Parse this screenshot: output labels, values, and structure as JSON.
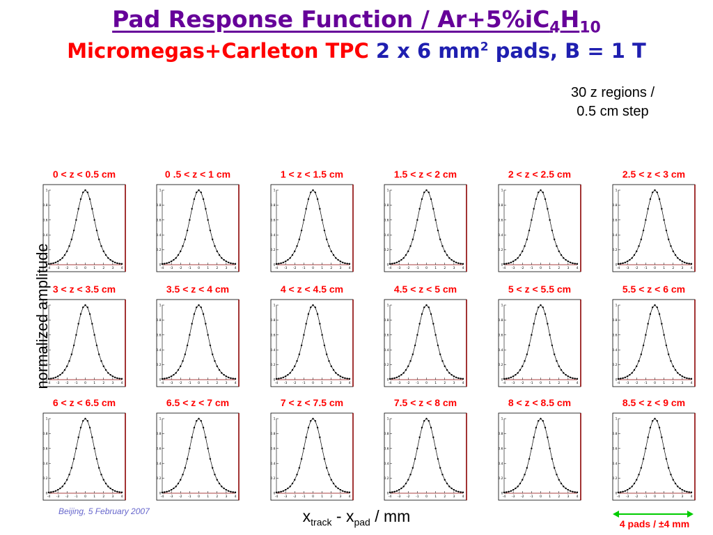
{
  "title": {
    "line1_main": "Pad Response Function / Ar+5%iC",
    "line1_sub1": "4",
    "line1_mid": "H",
    "line1_sub2": "10",
    "line2_red": "Micromegas+Carleton TPC",
    "line2_blue_a": "2 x 6 mm",
    "line2_sup": "2",
    "line2_blue_b": " pads, B = 1 T"
  },
  "note": {
    "line1": "30 z regions /",
    "line2": "0.5 cm step"
  },
  "footer": "Beijing, 5 February 2007",
  "pads_annotation": "4 pads / ±4 mm",
  "colors": {
    "title": "#660099",
    "subtitle_red": "#ff0000",
    "subtitle_blue": "#1f1fb0",
    "panel_title": "#ff0000",
    "frame_right": "#8b0000",
    "arrow": "#00cc00"
  },
  "chart_data": {
    "type": "scatter",
    "x_label_main": "x",
    "x_label_sub1": "track",
    "x_label_mid": " - x",
    "x_label_sub2": "pad",
    "x_label_unit": " / mm",
    "ylabel": "normalized amplitude",
    "xlim": [
      -4,
      4
    ],
    "ylim": [
      0,
      1
    ],
    "x_ticks": [
      "-4",
      "-3",
      "-2",
      "-1",
      "0",
      "1",
      "2",
      "3",
      "4"
    ],
    "y_ticks": [
      "0",
      "0.2",
      "0.4",
      "0.6",
      "0.8",
      "1"
    ],
    "grid": false,
    "shared_x": [
      -4.0,
      -3.75,
      -3.5,
      -3.25,
      -3.0,
      -2.75,
      -2.5,
      -2.25,
      -2.0,
      -1.75,
      -1.5,
      -1.25,
      -1.0,
      -0.75,
      -0.5,
      -0.25,
      0.0,
      0.25,
      0.5,
      0.75,
      1.0,
      1.25,
      1.5,
      1.75,
      2.0,
      2.25,
      2.5,
      2.75,
      3.0,
      3.25,
      3.5,
      3.75,
      4.0
    ],
    "shared_y": [
      0.01,
      0.015,
      0.02,
      0.03,
      0.045,
      0.065,
      0.09,
      0.13,
      0.18,
      0.25,
      0.34,
      0.46,
      0.6,
      0.75,
      0.88,
      0.97,
      1.0,
      0.97,
      0.88,
      0.75,
      0.6,
      0.46,
      0.34,
      0.25,
      0.18,
      0.13,
      0.09,
      0.065,
      0.045,
      0.03,
      0.02,
      0.015,
      0.01
    ],
    "panels": [
      {
        "title": "0 < z < 0.5 cm"
      },
      {
        "title": "0 .5 < z < 1 cm"
      },
      {
        "title": "1 < z < 1.5 cm"
      },
      {
        "title": "1.5 < z < 2 cm"
      },
      {
        "title": "2 < z < 2.5 cm"
      },
      {
        "title": "2.5 < z < 3 cm"
      },
      {
        "title": "3 < z < 3.5 cm"
      },
      {
        "title": "3.5 < z < 4 cm"
      },
      {
        "title": "4 < z < 4.5 cm"
      },
      {
        "title": "4.5 < z < 5 cm"
      },
      {
        "title": "5 < z < 5.5 cm"
      },
      {
        "title": "5.5 < z < 6 cm"
      },
      {
        "title": "6 < z < 6.5 cm"
      },
      {
        "title": "6.5 < z < 7 cm"
      },
      {
        "title": "7 < z < 7.5 cm"
      },
      {
        "title": "7.5 < z < 8 cm"
      },
      {
        "title": "8 < z < 8.5 cm"
      },
      {
        "title": "8.5 < z < 9 cm"
      }
    ]
  }
}
